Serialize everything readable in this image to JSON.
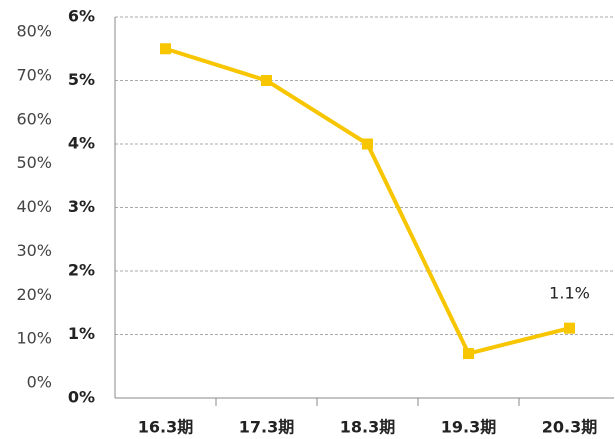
{
  "chart_data": {
    "type": "line",
    "categories": [
      "16.3期",
      "17.3期",
      "18.3期",
      "19.3期",
      "20.3期"
    ],
    "series": [
      {
        "name": null,
        "color": "#f7c600",
        "values": [
          5.5,
          5.0,
          4.0,
          0.7,
          1.1
        ],
        "value_labels": [
          null,
          null,
          null,
          null,
          "1.1%"
        ]
      }
    ],
    "ylim": [
      0,
      6
    ],
    "yticks": [
      {
        "value": 0,
        "label": "0%"
      },
      {
        "value": 1,
        "label": "1%"
      },
      {
        "value": 2,
        "label": "2%"
      },
      {
        "value": 3,
        "label": "3%"
      },
      {
        "value": 4,
        "label": "4%"
      },
      {
        "value": 5,
        "label": "5%"
      },
      {
        "value": 6,
        "label": "6%"
      }
    ],
    "y2lim": [
      0,
      80
    ],
    "y2ticks": [
      {
        "value": 0,
        "label": "0%"
      },
      {
        "value": 10,
        "label": "10%"
      },
      {
        "value": 20,
        "label": "20%"
      },
      {
        "value": 30,
        "label": "30%"
      },
      {
        "value": 40,
        "label": "40%"
      },
      {
        "value": 50,
        "label": "50%"
      },
      {
        "value": 60,
        "label": "60%"
      },
      {
        "value": 70,
        "label": "70%"
      },
      {
        "value": 80,
        "label": "80%"
      }
    ],
    "grid": true
  }
}
